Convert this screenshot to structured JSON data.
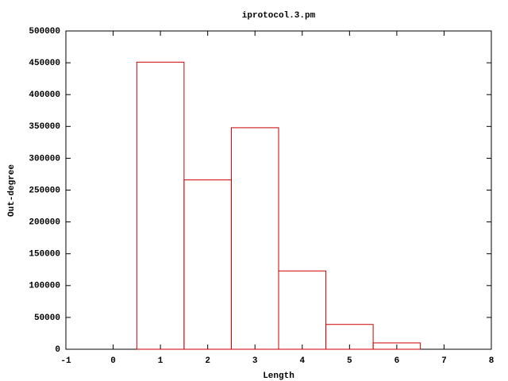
{
  "chart_data": {
    "type": "bar",
    "title": "iprotocol.3.pm",
    "x_label": "Length",
    "y_label": "Out-degree",
    "x": [
      1,
      2,
      3,
      4,
      5,
      6
    ],
    "values": [
      451000,
      266000,
      348000,
      123000,
      39000,
      10000
    ],
    "color": "#cc0000",
    "xlim": [
      -1,
      8
    ],
    "xticks": [
      -1,
      0,
      1,
      2,
      3,
      4,
      5,
      6,
      7,
      8
    ],
    "ylim": [
      0,
      500000
    ],
    "yticks": [
      0,
      50000,
      100000,
      150000,
      200000,
      250000,
      300000,
      350000,
      400000,
      450000,
      500000
    ]
  }
}
